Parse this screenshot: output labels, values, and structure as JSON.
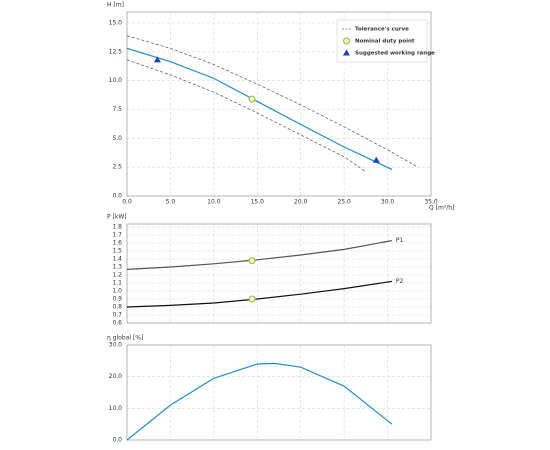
{
  "chart_data": [
    {
      "type": "line",
      "ylabel": "H [m]",
      "xlabel": "Q [m³/h]",
      "xlim": [
        0,
        35
      ],
      "xticks": [
        {
          "value": 0,
          "label": "0.0"
        },
        {
          "value": 5,
          "label": "5.0"
        },
        {
          "value": 10,
          "label": "10.0"
        },
        {
          "value": 15,
          "label": "15.0"
        },
        {
          "value": 20,
          "label": "20.0"
        },
        {
          "value": 25,
          "label": "25.0"
        },
        {
          "value": 30,
          "label": "30.0"
        },
        {
          "value": 35,
          "label": "35.0"
        }
      ],
      "ylim": [
        0,
        15
      ],
      "yticks": [
        {
          "value": 0,
          "label": "0.0"
        },
        2.5,
        {
          "value": 5,
          "label": "5.0"
        },
        7.5,
        {
          "value": 10,
          "label": "10.0"
        },
        12.5,
        {
          "value": 15,
          "label": "15.0"
        }
      ],
      "grid": true,
      "legend": "upper right",
      "series": [
        {
          "style": "line",
          "color": "#1f8ec9",
          "x": [
            0,
            5,
            10,
            15,
            20,
            25,
            30.5
          ],
          "values": [
            12.8,
            11.65,
            10.2,
            8.2,
            6.2,
            4.25,
            2.3
          ]
        },
        {
          "name": "Tolerance's curve",
          "style": "dashed",
          "color": "#666666",
          "x": [
            0,
            5,
            10,
            15,
            20,
            25,
            30,
            33.5
          ],
          "values": [
            13.9,
            12.8,
            11.4,
            9.7,
            7.9,
            6.0,
            4.0,
            2.5
          ]
        },
        {
          "style": "dashed",
          "color": "#666666",
          "x": [
            0,
            5,
            10,
            15,
            20,
            25,
            27.5
          ],
          "values": [
            11.8,
            10.5,
            9.0,
            7.2,
            5.3,
            3.4,
            2.1
          ]
        },
        {
          "name": "Nominal duty point",
          "style": "circle",
          "color": "#8cbf3f",
          "x": [
            14.4
          ],
          "values": [
            8.4
          ]
        },
        {
          "name": "Suggested working range",
          "style": "triangle",
          "color": "#1c3fb5",
          "x": [
            3.5,
            28.7
          ],
          "values": [
            11.8,
            3.1
          ]
        }
      ]
    },
    {
      "type": "line",
      "ylabel": "P [kW]",
      "xlim": [
        0,
        35
      ],
      "ylim": [
        0.6,
        1.8
      ],
      "yticks": [
        0.6,
        0.7,
        0.8,
        0.9,
        {
          "value": 1,
          "label": "1.0"
        },
        1.1,
        1.2,
        1.3,
        1.4,
        1.5,
        1.6,
        1.7,
        1.8
      ],
      "grid": true,
      "series": [
        {
          "name": "P1",
          "style": "line",
          "color": "#555555",
          "x": [
            0,
            5,
            10,
            15,
            20,
            25,
            30.5
          ],
          "values": [
            1.27,
            1.3,
            1.34,
            1.39,
            1.45,
            1.52,
            1.63
          ]
        },
        {
          "name": "P2",
          "style": "line",
          "color": "#111111",
          "x": [
            0,
            5,
            10,
            15,
            20,
            25,
            30.5
          ],
          "values": [
            0.8,
            0.82,
            0.85,
            0.9,
            0.96,
            1.03,
            1.12
          ]
        },
        {
          "style": "circle",
          "color": "#8cbf3f",
          "x": [
            14.4,
            14.4
          ],
          "values": [
            1.38,
            0.9
          ]
        }
      ]
    },
    {
      "type": "line",
      "ylabel": "η global [%]",
      "xlim": [
        0,
        35
      ],
      "ylim": [
        0,
        30
      ],
      "yticks": [
        {
          "value": 0,
          "label": "0.0"
        },
        {
          "value": 10,
          "label": "10.0"
        },
        {
          "value": 20,
          "label": "20.0"
        },
        {
          "value": 30,
          "label": "30.0"
        }
      ],
      "grid": true,
      "series": [
        {
          "style": "line",
          "color": "#1f8ec9",
          "x": [
            0,
            5,
            10,
            15,
            17,
            20,
            25,
            30.5
          ],
          "values": [
            0,
            11,
            19.5,
            24,
            24.2,
            23,
            17,
            5
          ]
        }
      ]
    }
  ]
}
